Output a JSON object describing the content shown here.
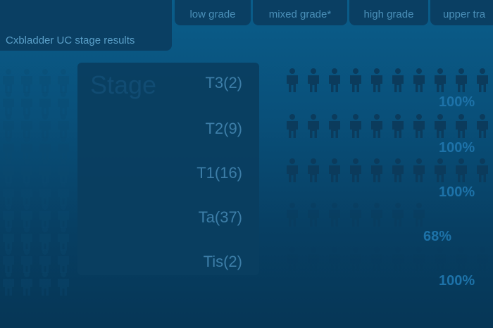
{
  "header": {
    "title": "Cxbladder UC stage results",
    "tabs": [
      {
        "label": "low grade"
      },
      {
        "label": "mixed grade*"
      },
      {
        "label": "high grade"
      },
      {
        "label": "upper tra"
      }
    ]
  },
  "stage_panel": {
    "heading": "Stage",
    "rows": [
      {
        "label": "T3(2)",
        "percent": "100%",
        "detected_fraction": 1.0
      },
      {
        "label": "T2(9)",
        "percent": "100%",
        "detected_fraction": 1.0
      },
      {
        "label": "T1(16)",
        "percent": "100%",
        "detected_fraction": 1.0
      },
      {
        "label": "Ta(37)",
        "percent": "68%",
        "detected_fraction": 0.68
      },
      {
        "label": "Tis(2)",
        "percent": "100%",
        "detected_fraction": 1.0
      }
    ]
  },
  "icon": "person-icon",
  "colors": {
    "person": "#0b3b5c",
    "percent": "#1d72a8",
    "panel": "#0a3f63"
  }
}
